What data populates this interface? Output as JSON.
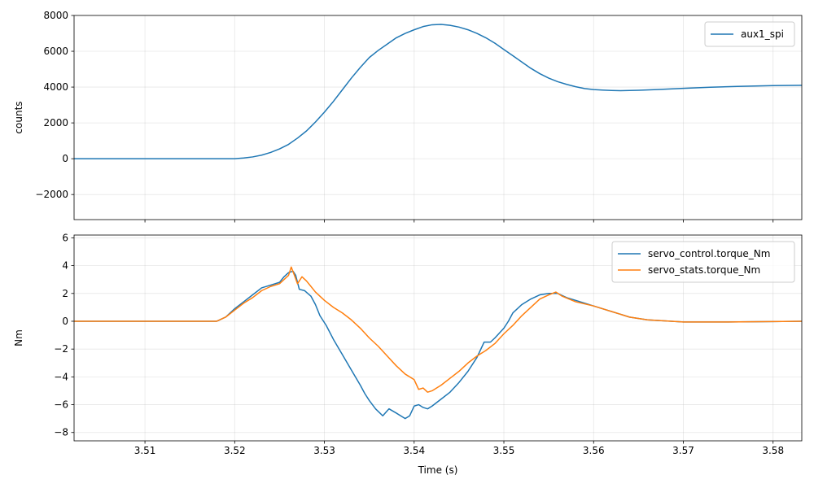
{
  "chart_data": [
    {
      "type": "line",
      "title": "",
      "xlabel": "",
      "ylabel": "counts",
      "xlim": [
        3.5021,
        3.5832
      ],
      "ylim": [
        -3400,
        8000
      ],
      "x_ticks": [
        3.51,
        3.52,
        3.53,
        3.54,
        3.55,
        3.56,
        3.57,
        3.58
      ],
      "x_tick_labels_visible": false,
      "y_ticks": [
        -2000,
        0,
        2000,
        4000,
        6000,
        8000
      ],
      "y_tick_labels": [
        "−2000",
        "0",
        "2000",
        "4000",
        "6000",
        "8000"
      ],
      "grid": true,
      "legend_position": "top-right",
      "series": [
        {
          "name": "aux1_spi",
          "color": "#1f77b4",
          "points": [
            [
              3.5021,
              0
            ],
            [
              3.51,
              0
            ],
            [
              3.518,
              0
            ],
            [
              3.52,
              0
            ],
            [
              3.521,
              40
            ],
            [
              3.522,
              100
            ],
            [
              3.523,
              200
            ],
            [
              3.524,
              350
            ],
            [
              3.525,
              550
            ],
            [
              3.526,
              800
            ],
            [
              3.527,
              1150
            ],
            [
              3.528,
              1550
            ],
            [
              3.529,
              2050
            ],
            [
              3.53,
              2600
            ],
            [
              3.531,
              3200
            ],
            [
              3.532,
              3850
            ],
            [
              3.533,
              4500
            ],
            [
              3.534,
              5100
            ],
            [
              3.535,
              5650
            ],
            [
              3.536,
              6050
            ],
            [
              3.537,
              6400
            ],
            [
              3.538,
              6750
            ],
            [
              3.539,
              7000
            ],
            [
              3.54,
              7200
            ],
            [
              3.541,
              7380
            ],
            [
              3.542,
              7480
            ],
            [
              3.543,
              7500
            ],
            [
              3.544,
              7450
            ],
            [
              3.545,
              7350
            ],
            [
              3.546,
              7200
            ],
            [
              3.547,
              7000
            ],
            [
              3.548,
              6750
            ],
            [
              3.549,
              6450
            ],
            [
              3.55,
              6100
            ],
            [
              3.551,
              5750
            ],
            [
              3.552,
              5400
            ],
            [
              3.553,
              5050
            ],
            [
              3.554,
              4750
            ],
            [
              3.555,
              4500
            ],
            [
              3.556,
              4300
            ],
            [
              3.557,
              4150
            ],
            [
              3.558,
              4020
            ],
            [
              3.559,
              3920
            ],
            [
              3.56,
              3860
            ],
            [
              3.561,
              3830
            ],
            [
              3.562,
              3810
            ],
            [
              3.563,
              3800
            ],
            [
              3.565,
              3820
            ],
            [
              3.567,
              3860
            ],
            [
              3.57,
              3930
            ],
            [
              3.573,
              3990
            ],
            [
              3.576,
              4040
            ],
            [
              3.58,
              4080
            ],
            [
              3.5832,
              4100
            ]
          ]
        }
      ]
    },
    {
      "type": "line",
      "title": "",
      "xlabel": "Time (s)",
      "ylabel": "Nm",
      "xlim": [
        3.5021,
        3.5832
      ],
      "ylim": [
        -8.6,
        6.2
      ],
      "x_ticks": [
        3.51,
        3.52,
        3.53,
        3.54,
        3.55,
        3.56,
        3.57,
        3.58
      ],
      "x_tick_labels": [
        "3.51",
        "3.52",
        "3.53",
        "3.54",
        "3.55",
        "3.56",
        "3.57",
        "3.58"
      ],
      "y_ticks": [
        -8,
        -6,
        -4,
        -2,
        0,
        2,
        4,
        6
      ],
      "y_tick_labels": [
        "−8",
        "−6",
        "−4",
        "−2",
        "0",
        "2",
        "4",
        "6"
      ],
      "grid": true,
      "legend_position": "top-right",
      "series": [
        {
          "name": "servo_control.torque_Nm",
          "color": "#1f77b4",
          "points": [
            [
              3.5021,
              0
            ],
            [
              3.51,
              0
            ],
            [
              3.518,
              0
            ],
            [
              3.519,
              0.3
            ],
            [
              3.52,
              0.9
            ],
            [
              3.521,
              1.4
            ],
            [
              3.522,
              1.9
            ],
            [
              3.523,
              2.4
            ],
            [
              3.524,
              2.6
            ],
            [
              3.525,
              2.8
            ],
            [
              3.5255,
              3.2
            ],
            [
              3.526,
              3.5
            ],
            [
              3.5265,
              3.6
            ],
            [
              3.5268,
              3.3
            ],
            [
              3.5272,
              2.3
            ],
            [
              3.5278,
              2.2
            ],
            [
              3.5285,
              1.8
            ],
            [
              3.529,
              1.2
            ],
            [
              3.5295,
              0.4
            ],
            [
              3.5302,
              -0.3
            ],
            [
              3.531,
              -1.3
            ],
            [
              3.532,
              -2.4
            ],
            [
              3.533,
              -3.5
            ],
            [
              3.534,
              -4.6
            ],
            [
              3.5345,
              -5.2
            ],
            [
              3.535,
              -5.7
            ],
            [
              3.5357,
              -6.3
            ],
            [
              3.5365,
              -6.8
            ],
            [
              3.5372,
              -6.3
            ],
            [
              3.538,
              -6.6
            ],
            [
              3.539,
              -7.0
            ],
            [
              3.5395,
              -6.8
            ],
            [
              3.54,
              -6.1
            ],
            [
              3.5405,
              -6.0
            ],
            [
              3.541,
              -6.2
            ],
            [
              3.5415,
              -6.3
            ],
            [
              3.542,
              -6.1
            ],
            [
              3.543,
              -5.6
            ],
            [
              3.544,
              -5.1
            ],
            [
              3.545,
              -4.4
            ],
            [
              3.546,
              -3.6
            ],
            [
              3.547,
              -2.6
            ],
            [
              3.5478,
              -1.5
            ],
            [
              3.5485,
              -1.5
            ],
            [
              3.549,
              -1.2
            ],
            [
              3.55,
              -0.5
            ],
            [
              3.5505,
              0.0
            ],
            [
              3.551,
              0.6
            ],
            [
              3.552,
              1.2
            ],
            [
              3.553,
              1.6
            ],
            [
              3.554,
              1.9
            ],
            [
              3.555,
              2.0
            ],
            [
              3.556,
              2.0
            ],
            [
              3.557,
              1.7
            ],
            [
              3.558,
              1.5
            ],
            [
              3.56,
              1.1
            ],
            [
              3.562,
              0.7
            ],
            [
              3.564,
              0.3
            ],
            [
              3.566,
              0.1
            ],
            [
              3.57,
              -0.05
            ],
            [
              3.575,
              -0.05
            ],
            [
              3.58,
              -0.02
            ],
            [
              3.5832,
              0
            ]
          ]
        },
        {
          "name": "servo_stats.torque_Nm",
          "color": "#ff7f0e",
          "points": [
            [
              3.5021,
              0
            ],
            [
              3.51,
              0
            ],
            [
              3.518,
              0
            ],
            [
              3.519,
              0.3
            ],
            [
              3.52,
              0.8
            ],
            [
              3.521,
              1.3
            ],
            [
              3.522,
              1.7
            ],
            [
              3.523,
              2.2
            ],
            [
              3.524,
              2.5
            ],
            [
              3.525,
              2.7
            ],
            [
              3.5255,
              3.0
            ],
            [
              3.526,
              3.3
            ],
            [
              3.5263,
              3.9
            ],
            [
              3.5266,
              3.4
            ],
            [
              3.527,
              2.7
            ],
            [
              3.5275,
              3.2
            ],
            [
              3.528,
              2.9
            ],
            [
              3.529,
              2.1
            ],
            [
              3.53,
              1.5
            ],
            [
              3.531,
              1.0
            ],
            [
              3.532,
              0.6
            ],
            [
              3.533,
              0.1
            ],
            [
              3.534,
              -0.5
            ],
            [
              3.535,
              -1.2
            ],
            [
              3.536,
              -1.8
            ],
            [
              3.537,
              -2.5
            ],
            [
              3.538,
              -3.2
            ],
            [
              3.539,
              -3.8
            ],
            [
              3.54,
              -4.2
            ],
            [
              3.5405,
              -4.9
            ],
            [
              3.541,
              -4.8
            ],
            [
              3.5415,
              -5.1
            ],
            [
              3.542,
              -5.0
            ],
            [
              3.543,
              -4.6
            ],
            [
              3.544,
              -4.1
            ],
            [
              3.545,
              -3.6
            ],
            [
              3.546,
              -3.0
            ],
            [
              3.547,
              -2.5
            ],
            [
              3.548,
              -2.1
            ],
            [
              3.549,
              -1.6
            ],
            [
              3.55,
              -0.9
            ],
            [
              3.551,
              -0.3
            ],
            [
              3.552,
              0.4
            ],
            [
              3.553,
              1.0
            ],
            [
              3.554,
              1.6
            ],
            [
              3.555,
              1.9
            ],
            [
              3.5558,
              2.1
            ],
            [
              3.5565,
              1.8
            ],
            [
              3.558,
              1.4
            ],
            [
              3.56,
              1.1
            ],
            [
              3.562,
              0.7
            ],
            [
              3.564,
              0.3
            ],
            [
              3.566,
              0.1
            ],
            [
              3.57,
              -0.05
            ],
            [
              3.575,
              -0.05
            ],
            [
              3.58,
              -0.02
            ],
            [
              3.5832,
              0
            ]
          ]
        }
      ]
    }
  ]
}
